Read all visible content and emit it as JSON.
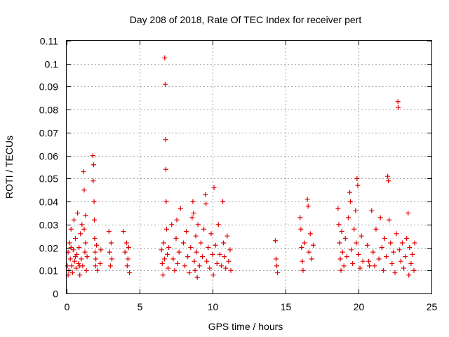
{
  "chart_data": {
    "type": "scatter",
    "title": "Day 208 of 2018, Rate Of TEC Index for receiver pert",
    "xlabel": "GPS time / hours",
    "ylabel": "ROTI / TECUs",
    "xlim": [
      0,
      25
    ],
    "ylim": [
      0,
      0.11
    ],
    "xticks": [
      "0",
      "5",
      "10",
      "15",
      "20",
      "25"
    ],
    "yticks": [
      "0",
      "0.01",
      "0.02",
      "0.03",
      "0.04",
      "0.05",
      "0.06",
      "0.07",
      "0.08",
      "0.09",
      "0.1",
      "0.11"
    ],
    "grid": true,
    "legend": "none",
    "marker": "plus",
    "color": "#e00000",
    "points": [
      [
        0.05,
        0.012
      ],
      [
        0.1,
        0.018
      ],
      [
        0.15,
        0.01
      ],
      [
        0.2,
        0.022
      ],
      [
        0.25,
        0.015
      ],
      [
        0.3,
        0.028
      ],
      [
        0.35,
        0.012
      ],
      [
        0.4,
        0.009
      ],
      [
        0.45,
        0.019
      ],
      [
        0.5,
        0.032
      ],
      [
        0.55,
        0.014
      ],
      [
        0.6,
        0.024
      ],
      [
        0.65,
        0.011
      ],
      [
        0.7,
        0.017
      ],
      [
        0.75,
        0.035
      ],
      [
        0.8,
        0.013
      ],
      [
        0.85,
        0.02
      ],
      [
        0.9,
        0.008
      ],
      [
        0.95,
        0.026
      ],
      [
        1.0,
        0.015
      ],
      [
        1.05,
        0.03
      ],
      [
        1.1,
        0.012
      ],
      [
        1.15,
        0.053
      ],
      [
        1.2,
        0.045
      ],
      [
        1.25,
        0.018
      ],
      [
        1.3,
        0.022
      ],
      [
        1.35,
        0.01
      ],
      [
        1.4,
        0.016
      ],
      [
        0.1,
        0.008
      ],
      [
        0.3,
        0.02
      ],
      [
        0.6,
        0.016
      ],
      [
        0.9,
        0.012
      ],
      [
        1.2,
        0.028
      ],
      [
        1.3,
        0.034
      ],
      [
        1.8,
        0.06
      ],
      [
        1.82,
        0.049
      ],
      [
        1.85,
        0.056
      ],
      [
        1.88,
        0.04
      ],
      [
        1.9,
        0.032
      ],
      [
        1.92,
        0.024
      ],
      [
        1.95,
        0.018
      ],
      [
        1.98,
        0.012
      ],
      [
        2.0,
        0.015
      ],
      [
        2.05,
        0.021
      ],
      [
        2.1,
        0.01
      ],
      [
        2.3,
        0.013
      ],
      [
        2.35,
        0.019
      ],
      [
        2.9,
        0.027
      ],
      [
        2.95,
        0.018
      ],
      [
        3.0,
        0.012
      ],
      [
        3.05,
        0.022
      ],
      [
        3.1,
        0.015
      ],
      [
        3.9,
        0.027
      ],
      [
        4.0,
        0.018
      ],
      [
        4.1,
        0.022
      ],
      [
        4.15,
        0.012
      ],
      [
        4.2,
        0.015
      ],
      [
        4.3,
        0.009
      ],
      [
        4.25,
        0.02
      ],
      [
        6.5,
        0.019
      ],
      [
        6.55,
        0.013
      ],
      [
        6.6,
        0.008
      ],
      [
        6.65,
        0.022
      ],
      [
        6.7,
        0.015
      ],
      [
        6.72,
        0.1025
      ],
      [
        6.75,
        0.091
      ],
      [
        6.78,
        0.067
      ],
      [
        6.8,
        0.054
      ],
      [
        6.82,
        0.04
      ],
      [
        6.85,
        0.028
      ],
      [
        6.9,
        0.017
      ],
      [
        6.95,
        0.011
      ],
      [
        7.0,
        0.02
      ],
      [
        7.2,
        0.03
      ],
      [
        7.3,
        0.015
      ],
      [
        7.4,
        0.01
      ],
      [
        7.5,
        0.024
      ],
      [
        7.55,
        0.032
      ],
      [
        7.6,
        0.013
      ],
      [
        7.7,
        0.018
      ],
      [
        7.8,
        0.037
      ],
      [
        8.0,
        0.022
      ],
      [
        8.1,
        0.012
      ],
      [
        8.2,
        0.027
      ],
      [
        8.3,
        0.016
      ],
      [
        8.4,
        0.009
      ],
      [
        8.5,
        0.02
      ],
      [
        8.6,
        0.033
      ],
      [
        8.65,
        0.04
      ],
      [
        8.7,
        0.035
      ],
      [
        8.75,
        0.014
      ],
      [
        8.8,
        0.01
      ],
      [
        8.85,
        0.025
      ],
      [
        8.9,
        0.018
      ],
      [
        8.95,
        0.007
      ],
      [
        9.0,
        0.03
      ],
      [
        9.1,
        0.012
      ],
      [
        9.2,
        0.022
      ],
      [
        9.3,
        0.016
      ],
      [
        9.4,
        0.028
      ],
      [
        9.5,
        0.043
      ],
      [
        9.55,
        0.039
      ],
      [
        9.6,
        0.014
      ],
      [
        9.7,
        0.02
      ],
      [
        9.8,
        0.011
      ],
      [
        9.9,
        0.026
      ],
      [
        10.0,
        0.017
      ],
      [
        10.05,
        0.008
      ],
      [
        10.1,
        0.046
      ],
      [
        10.2,
        0.021
      ],
      [
        10.3,
        0.013
      ],
      [
        10.4,
        0.03
      ],
      [
        10.5,
        0.017
      ],
      [
        10.6,
        0.012
      ],
      [
        10.7,
        0.04
      ],
      [
        10.75,
        0.022
      ],
      [
        10.8,
        0.016
      ],
      [
        10.9,
        0.011
      ],
      [
        11.0,
        0.025
      ],
      [
        11.1,
        0.014
      ],
      [
        11.2,
        0.019
      ],
      [
        11.25,
        0.01
      ],
      [
        14.3,
        0.023
      ],
      [
        14.35,
        0.015
      ],
      [
        14.4,
        0.012
      ],
      [
        14.45,
        0.009
      ],
      [
        16.0,
        0.033
      ],
      [
        16.05,
        0.028
      ],
      [
        16.1,
        0.02
      ],
      [
        16.15,
        0.014
      ],
      [
        16.2,
        0.01
      ],
      [
        16.3,
        0.022
      ],
      [
        16.5,
        0.041
      ],
      [
        16.55,
        0.038
      ],
      [
        16.6,
        0.018
      ],
      [
        16.7,
        0.026
      ],
      [
        16.8,
        0.015
      ],
      [
        16.9,
        0.021
      ],
      [
        18.6,
        0.037
      ],
      [
        18.65,
        0.03
      ],
      [
        18.7,
        0.022
      ],
      [
        18.75,
        0.015
      ],
      [
        18.8,
        0.01
      ],
      [
        18.85,
        0.027
      ],
      [
        18.9,
        0.018
      ],
      [
        19.0,
        0.012
      ],
      [
        19.1,
        0.024
      ],
      [
        19.2,
        0.016
      ],
      [
        19.3,
        0.033
      ],
      [
        19.4,
        0.044
      ],
      [
        19.45,
        0.04
      ],
      [
        19.5,
        0.019
      ],
      [
        19.6,
        0.013
      ],
      [
        19.7,
        0.028
      ],
      [
        19.8,
        0.036
      ],
      [
        19.85,
        0.022
      ],
      [
        19.9,
        0.05
      ],
      [
        19.95,
        0.047
      ],
      [
        20.0,
        0.017
      ],
      [
        20.1,
        0.011
      ],
      [
        20.2,
        0.025
      ],
      [
        20.3,
        0.014
      ],
      [
        20.6,
        0.021
      ],
      [
        20.7,
        0.014
      ],
      [
        20.75,
        0.012
      ],
      [
        20.9,
        0.036
      ],
      [
        21.0,
        0.018
      ],
      [
        21.1,
        0.012
      ],
      [
        21.2,
        0.028
      ],
      [
        21.4,
        0.015
      ],
      [
        21.5,
        0.033
      ],
      [
        21.6,
        0.02
      ],
      [
        21.7,
        0.01
      ],
      [
        21.8,
        0.024
      ],
      [
        21.9,
        0.016
      ],
      [
        22.0,
        0.051
      ],
      [
        22.05,
        0.049
      ],
      [
        22.1,
        0.032
      ],
      [
        22.2,
        0.022
      ],
      [
        22.3,
        0.013
      ],
      [
        22.4,
        0.018
      ],
      [
        22.5,
        0.009
      ],
      [
        22.6,
        0.026
      ],
      [
        22.7,
        0.0835
      ],
      [
        22.72,
        0.081
      ],
      [
        22.8,
        0.019
      ],
      [
        22.9,
        0.014
      ],
      [
        23.0,
        0.022
      ],
      [
        23.1,
        0.011
      ],
      [
        23.2,
        0.016
      ],
      [
        23.3,
        0.024
      ],
      [
        23.4,
        0.035
      ],
      [
        23.45,
        0.008
      ],
      [
        23.5,
        0.02
      ],
      [
        23.6,
        0.013
      ],
      [
        23.7,
        0.017
      ],
      [
        23.8,
        0.01
      ],
      [
        23.85,
        0.022
      ]
    ]
  }
}
